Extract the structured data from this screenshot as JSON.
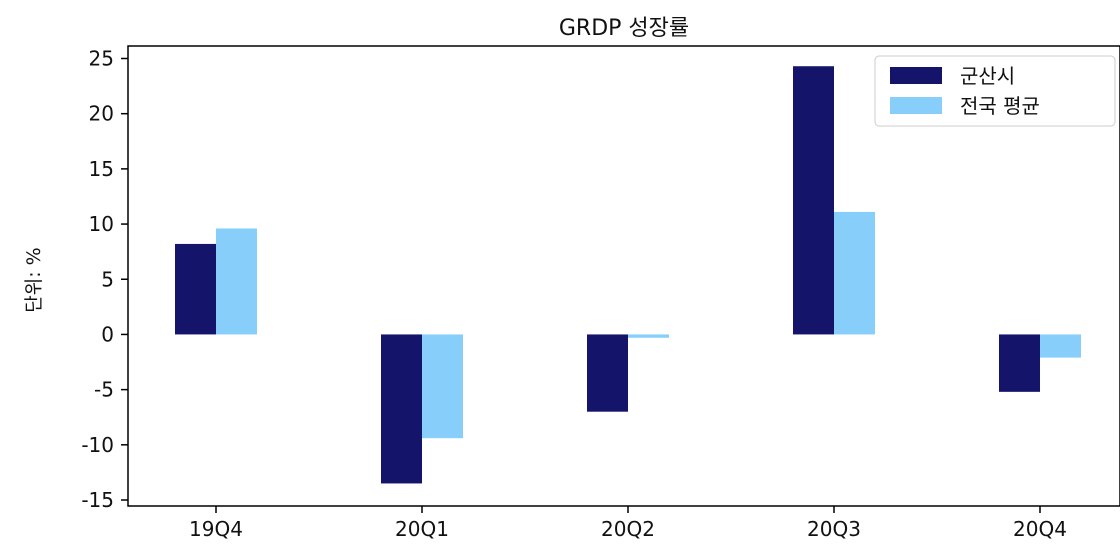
{
  "chart_data": {
    "type": "bar",
    "title": "GRDP 성장률",
    "xlabel": "",
    "ylabel": "단위: %",
    "categories": [
      "19Q4",
      "20Q1",
      "20Q2",
      "20Q3",
      "20Q4"
    ],
    "series": [
      {
        "name": "군산시",
        "values": [
          8.2,
          -13.5,
          -7.0,
          24.3,
          -5.2
        ]
      },
      {
        "name": "전국 평균",
        "values": [
          9.6,
          -9.4,
          -0.3,
          11.1,
          -2.1
        ]
      }
    ],
    "ylim": [
      -15,
      25
    ],
    "yticks": [
      "25",
      "20",
      "15",
      "10",
      "5",
      "0",
      "-5",
      "-10",
      "-15"
    ],
    "ytick_values": [
      25,
      20,
      15,
      10,
      5,
      0,
      -5,
      -10,
      -15
    ],
    "legend_position": "top-right",
    "grid": false,
    "colors": [
      "#14146b",
      "#87cefa"
    ]
  }
}
